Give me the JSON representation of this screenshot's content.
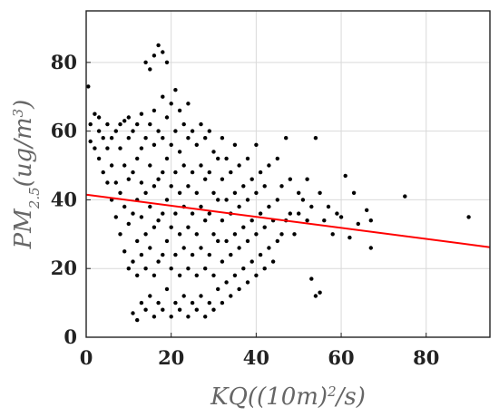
{
  "chart_data": {
    "type": "scatter",
    "xlabel": {
      "parts": [
        {
          "text": "KQ((10m)",
          "style": "normal"
        },
        {
          "text": "2",
          "style": "sup"
        },
        {
          "text": "/s)",
          "style": "normal"
        }
      ]
    },
    "ylabel": {
      "parts": [
        {
          "text": "PM",
          "style": "normal"
        },
        {
          "text": "2.5",
          "style": "sub"
        },
        {
          "text": "(ug/m",
          "style": "normal"
        },
        {
          "text": "3",
          "style": "sup"
        },
        {
          "text": ")",
          "style": "normal"
        }
      ]
    },
    "xlim": [
      0,
      95
    ],
    "ylim": [
      0,
      95
    ],
    "x_ticks": [
      0,
      20,
      40,
      60,
      80
    ],
    "x_tick_labels": [
      "0",
      "20",
      "40",
      "60",
      "80"
    ],
    "y_ticks": [
      0,
      20,
      40,
      60,
      80
    ],
    "y_tick_labels": [
      "0",
      "20",
      "40",
      "60",
      "80"
    ],
    "grid": true,
    "series": [
      {
        "marker_color": "#000000",
        "description": "dense point cloud, roughly 2000 points concentrated at x 5-35 and y 5-85; points listed below are representative sample",
        "points": [
          [
            0.5,
            73
          ],
          [
            1,
            57
          ],
          [
            1,
            62
          ],
          [
            2,
            55
          ],
          [
            2,
            65
          ],
          [
            3,
            52
          ],
          [
            3,
            60
          ],
          [
            3,
            64
          ],
          [
            4,
            48
          ],
          [
            4,
            58
          ],
          [
            5,
            45
          ],
          [
            5,
            55
          ],
          [
            5,
            62
          ],
          [
            6,
            40
          ],
          [
            6,
            50
          ],
          [
            6,
            58
          ],
          [
            7,
            35
          ],
          [
            7,
            45
          ],
          [
            7,
            60
          ],
          [
            8,
            30
          ],
          [
            8,
            42
          ],
          [
            8,
            55
          ],
          [
            8,
            62
          ],
          [
            9,
            25
          ],
          [
            9,
            38
          ],
          [
            9,
            50
          ],
          [
            9,
            63
          ],
          [
            10,
            20
          ],
          [
            10,
            33
          ],
          [
            10,
            46
          ],
          [
            10,
            58
          ],
          [
            10,
            64
          ],
          [
            11,
            7
          ],
          [
            11,
            22
          ],
          [
            11,
            36
          ],
          [
            11,
            48
          ],
          [
            11,
            60
          ],
          [
            12,
            5
          ],
          [
            12,
            18
          ],
          [
            12,
            28
          ],
          [
            12,
            40
          ],
          [
            12,
            52
          ],
          [
            12,
            62
          ],
          [
            13,
            10
          ],
          [
            13,
            24
          ],
          [
            13,
            35
          ],
          [
            13,
            45
          ],
          [
            13,
            55
          ],
          [
            13,
            65
          ],
          [
            14,
            8
          ],
          [
            14,
            20
          ],
          [
            14,
            30
          ],
          [
            14,
            42
          ],
          [
            14,
            58
          ],
          [
            14,
            80
          ],
          [
            15,
            12
          ],
          [
            15,
            26
          ],
          [
            15,
            38
          ],
          [
            15,
            50
          ],
          [
            15,
            62
          ],
          [
            15,
            78
          ],
          [
            16,
            6
          ],
          [
            16,
            18
          ],
          [
            16,
            32
          ],
          [
            16,
            44
          ],
          [
            16,
            56
          ],
          [
            16,
            66
          ],
          [
            16,
            82
          ],
          [
            17,
            10
          ],
          [
            17,
            22
          ],
          [
            17,
            34
          ],
          [
            17,
            46
          ],
          [
            17,
            60
          ],
          [
            17,
            85
          ],
          [
            18,
            8
          ],
          [
            18,
            24
          ],
          [
            18,
            36
          ],
          [
            18,
            48
          ],
          [
            18,
            58
          ],
          [
            18,
            70
          ],
          [
            18,
            83
          ],
          [
            19,
            14
          ],
          [
            19,
            28
          ],
          [
            19,
            40
          ],
          [
            19,
            52
          ],
          [
            19,
            64
          ],
          [
            19,
            80
          ],
          [
            20,
            6
          ],
          [
            20,
            20
          ],
          [
            20,
            32
          ],
          [
            20,
            44
          ],
          [
            20,
            56
          ],
          [
            20,
            68
          ],
          [
            21,
            10
          ],
          [
            21,
            24
          ],
          [
            21,
            36
          ],
          [
            21,
            48
          ],
          [
            21,
            60
          ],
          [
            21,
            72
          ],
          [
            22,
            8
          ],
          [
            22,
            18
          ],
          [
            22,
            30
          ],
          [
            22,
            42
          ],
          [
            22,
            54
          ],
          [
            22,
            66
          ],
          [
            23,
            12
          ],
          [
            23,
            26
          ],
          [
            23,
            38
          ],
          [
            23,
            50
          ],
          [
            23,
            62
          ],
          [
            24,
            6
          ],
          [
            24,
            20
          ],
          [
            24,
            32
          ],
          [
            24,
            44
          ],
          [
            24,
            58
          ],
          [
            24,
            68
          ],
          [
            25,
            10
          ],
          [
            25,
            24
          ],
          [
            25,
            36
          ],
          [
            25,
            48
          ],
          [
            25,
            60
          ],
          [
            26,
            8
          ],
          [
            26,
            18
          ],
          [
            26,
            30
          ],
          [
            26,
            42
          ],
          [
            26,
            56
          ],
          [
            27,
            12
          ],
          [
            27,
            26
          ],
          [
            27,
            38
          ],
          [
            27,
            50
          ],
          [
            27,
            62
          ],
          [
            28,
            6
          ],
          [
            28,
            20
          ],
          [
            28,
            34
          ],
          [
            28,
            46
          ],
          [
            28,
            58
          ],
          [
            29,
            10
          ],
          [
            29,
            24
          ],
          [
            29,
            36
          ],
          [
            29,
            48
          ],
          [
            29,
            60
          ],
          [
            30,
            8
          ],
          [
            30,
            18
          ],
          [
            30,
            30
          ],
          [
            30,
            42
          ],
          [
            30,
            54
          ],
          [
            31,
            14
          ],
          [
            31,
            28
          ],
          [
            31,
            40
          ],
          [
            31,
            52
          ],
          [
            32,
            10
          ],
          [
            32,
            22
          ],
          [
            32,
            34
          ],
          [
            32,
            46
          ],
          [
            32,
            58
          ],
          [
            33,
            16
          ],
          [
            33,
            28
          ],
          [
            33,
            40
          ],
          [
            33,
            52
          ],
          [
            34,
            12
          ],
          [
            34,
            24
          ],
          [
            34,
            36
          ],
          [
            34,
            48
          ],
          [
            35,
            18
          ],
          [
            35,
            30
          ],
          [
            35,
            42
          ],
          [
            35,
            56
          ],
          [
            36,
            14
          ],
          [
            36,
            26
          ],
          [
            36,
            38
          ],
          [
            36,
            50
          ],
          [
            37,
            20
          ],
          [
            37,
            32
          ],
          [
            37,
            44
          ],
          [
            38,
            16
          ],
          [
            38,
            28
          ],
          [
            38,
            40
          ],
          [
            38,
            52
          ],
          [
            39,
            22
          ],
          [
            39,
            34
          ],
          [
            39,
            46
          ],
          [
            40,
            18
          ],
          [
            40,
            30
          ],
          [
            40,
            42
          ],
          [
            40,
            56
          ],
          [
            41,
            24
          ],
          [
            41,
            36
          ],
          [
            41,
            48
          ],
          [
            42,
            20
          ],
          [
            42,
            32
          ],
          [
            42,
            44
          ],
          [
            43,
            26
          ],
          [
            43,
            38
          ],
          [
            43,
            50
          ],
          [
            44,
            22
          ],
          [
            44,
            34
          ],
          [
            45,
            28
          ],
          [
            45,
            40
          ],
          [
            45,
            52
          ],
          [
            46,
            30
          ],
          [
            46,
            44
          ],
          [
            47,
            34
          ],
          [
            47,
            58
          ],
          [
            48,
            36
          ],
          [
            48,
            46
          ],
          [
            49,
            30
          ],
          [
            50,
            36
          ],
          [
            50,
            42
          ],
          [
            51,
            40
          ],
          [
            52,
            34
          ],
          [
            52,
            46
          ],
          [
            53,
            17
          ],
          [
            53,
            38
          ],
          [
            54,
            12
          ],
          [
            54,
            58
          ],
          [
            55,
            42
          ],
          [
            55,
            13
          ],
          [
            56,
            34
          ],
          [
            57,
            38
          ],
          [
            58,
            30
          ],
          [
            59,
            36
          ],
          [
            60,
            35
          ],
          [
            61,
            47
          ],
          [
            62,
            29
          ],
          [
            63,
            42
          ],
          [
            64,
            33
          ],
          [
            66,
            37
          ],
          [
            67,
            34
          ],
          [
            67,
            26
          ],
          [
            75,
            41
          ],
          [
            90,
            35
          ]
        ]
      }
    ],
    "trend_line": {
      "color": "#ff0000",
      "x": [
        0,
        95
      ],
      "y": [
        41.5,
        26.2
      ]
    }
  }
}
